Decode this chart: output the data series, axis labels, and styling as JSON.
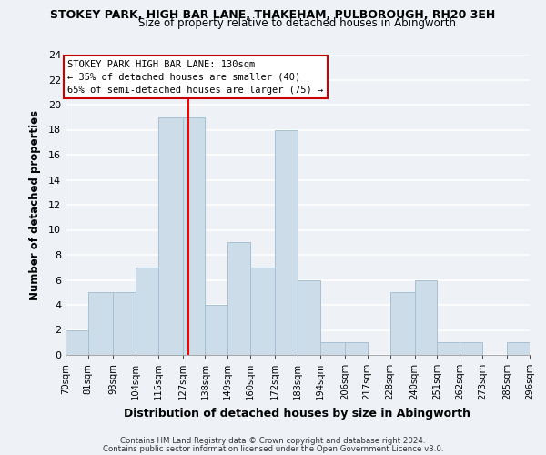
{
  "title": "STOKEY PARK, HIGH BAR LANE, THAKEHAM, PULBOROUGH, RH20 3EH",
  "subtitle": "Size of property relative to detached houses in Abingworth",
  "xlabel": "Distribution of detached houses by size in Abingworth",
  "ylabel": "Number of detached properties",
  "bar_edges": [
    70,
    81,
    93,
    104,
    115,
    127,
    138,
    149,
    160,
    172,
    183,
    194,
    206,
    217,
    228,
    240,
    251,
    262,
    273,
    285,
    296
  ],
  "bar_heights": [
    2,
    5,
    5,
    7,
    19,
    19,
    4,
    9,
    7,
    18,
    6,
    1,
    1,
    0,
    5,
    6,
    1,
    1,
    0,
    1
  ],
  "bar_color": "#ccdce8",
  "bar_edge_color": "#a8c0d4",
  "reference_line_x": 130,
  "reference_line_color": "red",
  "ylim": [
    0,
    24
  ],
  "yticks": [
    0,
    2,
    4,
    6,
    8,
    10,
    12,
    14,
    16,
    18,
    20,
    22,
    24
  ],
  "tick_labels": [
    "70sqm",
    "81sqm",
    "93sqm",
    "104sqm",
    "115sqm",
    "127sqm",
    "138sqm",
    "149sqm",
    "160sqm",
    "172sqm",
    "183sqm",
    "194sqm",
    "206sqm",
    "217sqm",
    "228sqm",
    "240sqm",
    "251sqm",
    "262sqm",
    "273sqm",
    "285sqm",
    "296sqm"
  ],
  "annotation_title": "STOKEY PARK HIGH BAR LANE: 130sqm",
  "annotation_line1": "← 35% of detached houses are smaller (40)",
  "annotation_line2": "65% of semi-detached houses are larger (75) →",
  "annotation_box_color": "white",
  "annotation_box_edge": "#cc0000",
  "footer1": "Contains HM Land Registry data © Crown copyright and database right 2024.",
  "footer2": "Contains public sector information licensed under the Open Government Licence v3.0.",
  "bg_color": "#eef2f7",
  "grid_color": "white"
}
